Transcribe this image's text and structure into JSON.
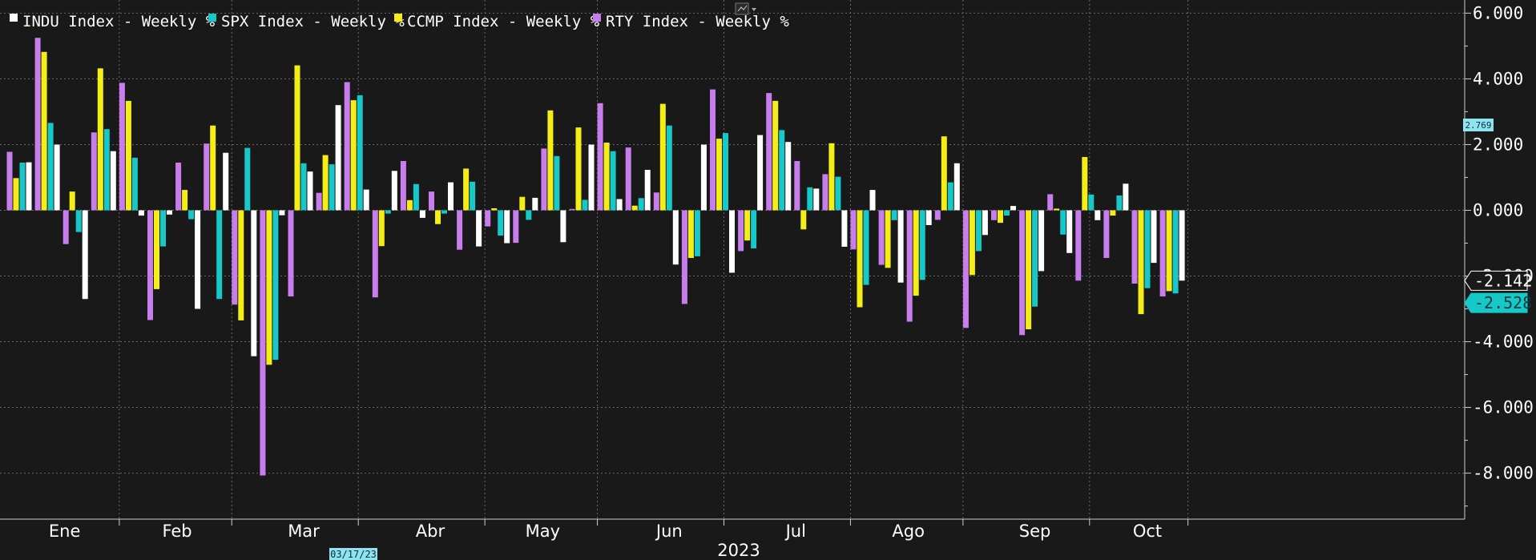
{
  "colors": {
    "background": "#191919",
    "grid": "#6a6a6a",
    "INDU": "#ffffff",
    "SPX": "#16c8c8",
    "CCMP": "#f5ee16",
    "RTY": "#c77dec"
  },
  "chart_data": {
    "type": "bar",
    "x_unit": "week",
    "xlabel": "2023",
    "ylabel": "",
    "ylim": [
      -9.4,
      6.4
    ],
    "y_ticks": [
      6,
      4,
      2,
      0,
      -2,
      -4,
      -6,
      -8
    ],
    "y_tick_labels": [
      "6.000",
      "4.000",
      "2.000",
      "0.000",
      "-2.000",
      "-4.000",
      "-6.000",
      "-8.000"
    ],
    "y_axis_side": "right",
    "grid": true,
    "legend_position": "top-left",
    "month_labels": [
      "Ene",
      "Feb",
      "Mar",
      "Abr",
      "May",
      "Jun",
      "Jul",
      "Ago",
      "Sep",
      "Oct"
    ],
    "month_week_index": [
      1.5,
      5.5,
      10,
      14.5,
      18.5,
      23,
      27.5,
      31.5,
      36,
      40
    ],
    "series_order": [
      "RTY",
      "CCMP",
      "SPX",
      "INDU"
    ],
    "series": [
      {
        "key": "INDU",
        "name": "INDU Index - Weekly %",
        "color": "#ffffff",
        "values": [
          1.46,
          2.0,
          -2.7,
          1.8,
          -0.16,
          -0.13,
          -3.0,
          1.75,
          -4.44,
          -0.15,
          1.18,
          3.2,
          0.63,
          1.2,
          -0.23,
          0.85,
          -1.1,
          -1.0,
          0.38,
          -0.97,
          2.0,
          0.34,
          1.23,
          -1.65,
          2.0,
          -1.9,
          2.29,
          2.08,
          0.66,
          -1.11,
          0.62,
          -2.2,
          -0.45,
          1.43,
          -0.75,
          0.13,
          -1.85,
          -1.3,
          -0.3,
          0.81,
          -1.6,
          -2.142
        ]
      },
      {
        "key": "SPX",
        "name": "SPX Index - Weekly %",
        "color": "#16c8c8",
        "values": [
          1.45,
          2.66,
          -0.66,
          2.47,
          1.6,
          -1.1,
          -0.27,
          -2.7,
          1.9,
          -4.55,
          1.43,
          1.4,
          3.5,
          -0.1,
          0.8,
          -0.1,
          0.87,
          -0.77,
          -0.29,
          1.65,
          0.32,
          1.8,
          0.37,
          2.58,
          -1.4,
          2.35,
          -1.16,
          2.44,
          0.7,
          1.02,
          -2.27,
          -0.3,
          -2.12,
          0.85,
          -1.24,
          -0.16,
          -2.93,
          -0.74,
          0.48,
          0.45,
          -2.37,
          -2.528
        ]
      },
      {
        "key": "CCMP",
        "name": "CCMP Index - Weekly %",
        "color": "#f5ee16",
        "values": [
          0.98,
          4.82,
          0.57,
          4.32,
          3.33,
          -2.4,
          0.62,
          2.58,
          -3.35,
          -4.7,
          4.41,
          1.68,
          3.35,
          -1.09,
          0.31,
          -0.42,
          1.27,
          0.06,
          0.41,
          3.04,
          2.52,
          2.06,
          0.14,
          3.24,
          -1.45,
          2.18,
          -0.92,
          3.33,
          -0.58,
          2.04,
          -2.95,
          -1.75,
          -2.6,
          2.25,
          -1.97,
          -0.38,
          -3.62,
          0.05,
          1.62,
          -0.16,
          -3.16,
          -2.46
        ]
      },
      {
        "key": "RTY",
        "name": "RTY Index - Weekly %",
        "color": "#c77dec",
        "values": [
          1.78,
          5.25,
          -1.03,
          2.37,
          3.88,
          -3.34,
          1.45,
          2.03,
          -2.87,
          -8.07,
          -2.62,
          0.53,
          3.9,
          -2.65,
          1.5,
          0.57,
          -1.2,
          -0.49,
          -0.99,
          1.88,
          0.04,
          3.26,
          1.91,
          0.54,
          -2.85,
          3.68,
          -1.24,
          3.57,
          1.5,
          1.1,
          -1.19,
          -1.66,
          -3.39,
          -0.29,
          -3.58,
          -0.3,
          -3.8,
          0.49,
          -2.14,
          -1.45,
          -2.23,
          -2.62
        ]
      }
    ],
    "last_value_labels": [
      {
        "series": "INDU",
        "value": "-2.142"
      },
      {
        "series": "SPX",
        "value": "-2.528"
      }
    ],
    "side_tag": "2.769",
    "cursor_date": "03/17/23"
  }
}
